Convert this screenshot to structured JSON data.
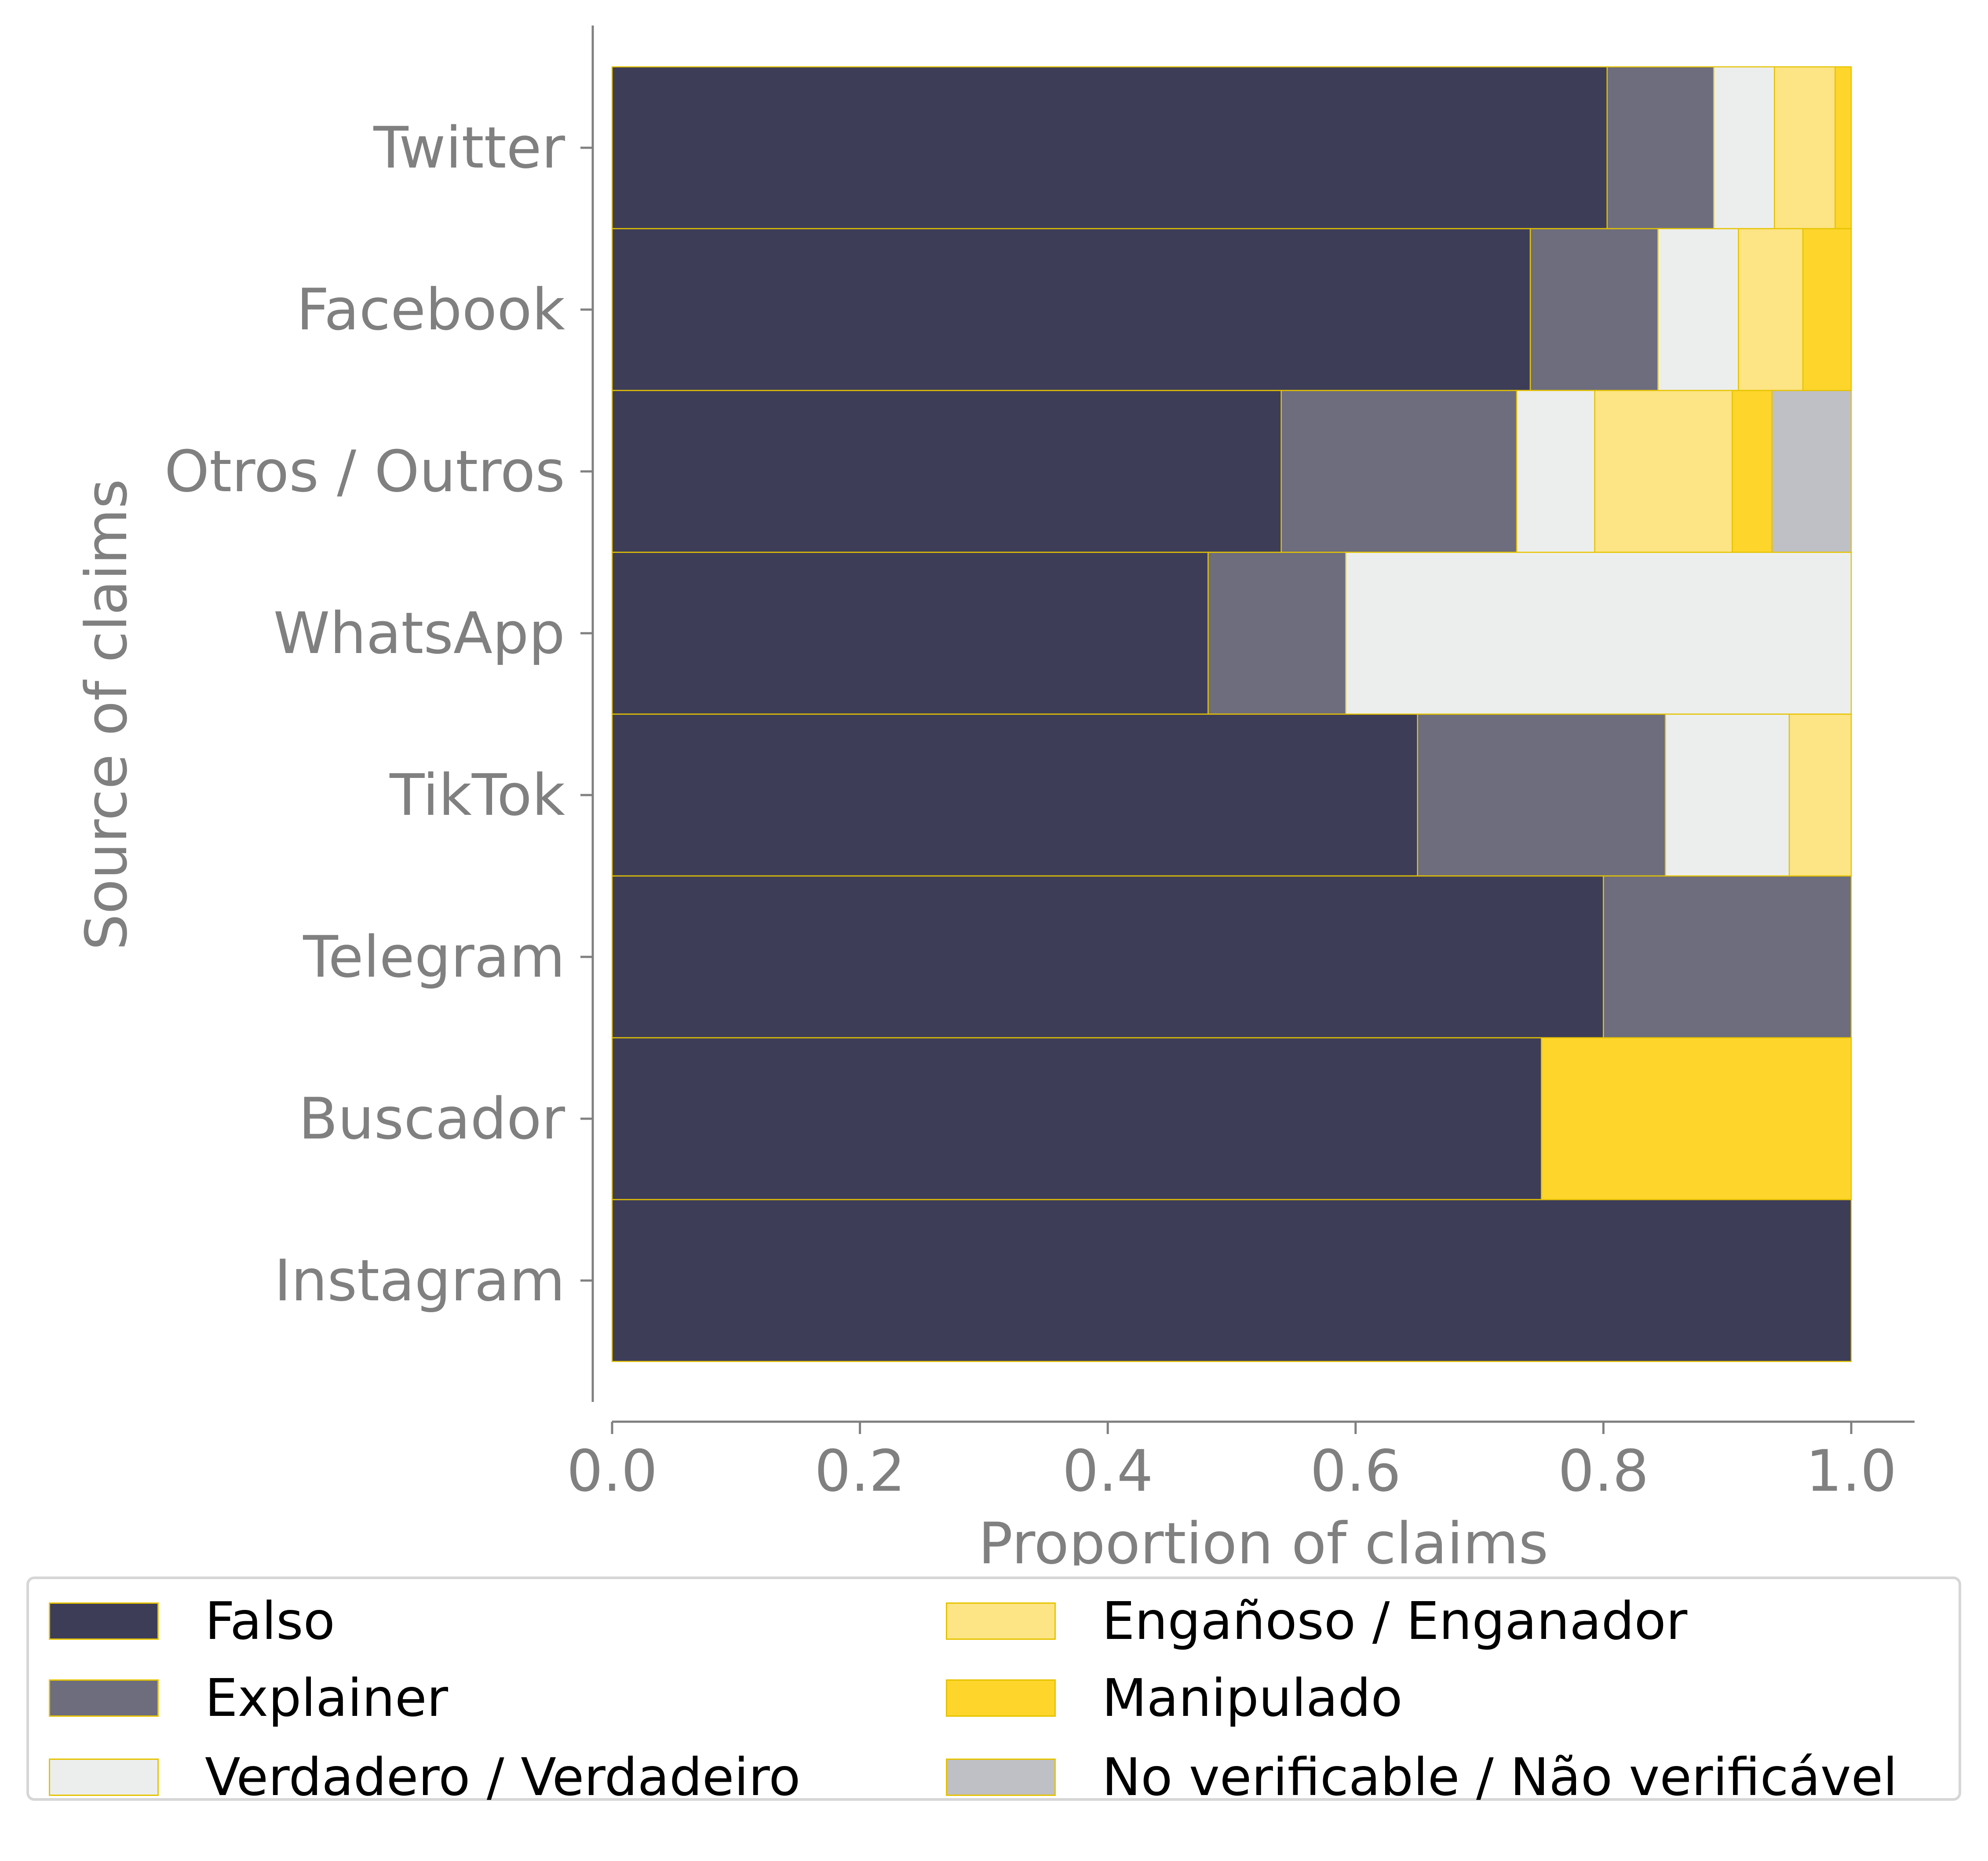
{
  "chart_data": {
    "type": "bar",
    "orientation": "horizontal",
    "stacked": true,
    "categories": [
      "Twitter",
      "Facebook",
      "Otros / Outros",
      "WhatsApp",
      "TikTok",
      "Telegram",
      "Buscador",
      "Instagram"
    ],
    "series": [
      {
        "name": "Falso",
        "color": "#3d3d58",
        "values": [
          0.803,
          0.741,
          0.54,
          0.481,
          0.65,
          0.8,
          0.75,
          1.0
        ]
      },
      {
        "name": "Explainer",
        "color": "#6d6d7e",
        "values": [
          0.086,
          0.103,
          0.19,
          0.111,
          0.2,
          0.2,
          0.0,
          0.0
        ]
      },
      {
        "name": "Verdadero / Verdadeiro",
        "color": "#eceeee",
        "values": [
          0.049,
          0.065,
          0.063,
          0.408,
          0.1,
          0.0,
          0.0,
          0.0
        ]
      },
      {
        "name": "Engañoso / Enganador",
        "color": "#fde485",
        "values": [
          0.049,
          0.052,
          0.111,
          0.0,
          0.05,
          0.0,
          0.0,
          0.0
        ]
      },
      {
        "name": "Manipulado",
        "color": "#fdd52b",
        "values": [
          0.013,
          0.039,
          0.032,
          0.0,
          0.0,
          0.0,
          0.25,
          0.0
        ]
      },
      {
        "name": "No verificable / Não verificável",
        "color": "#bfbfc6",
        "values": [
          0.0,
          0.0,
          0.064,
          0.0,
          0.0,
          0.0,
          0.0,
          0.0
        ]
      }
    ],
    "xlabel": "Proportion of claims",
    "ylabel": "Source of claims",
    "xlim": [
      0,
      1.05
    ],
    "xticks": [
      "0.0",
      "0.2",
      "0.4",
      "0.6",
      "0.8",
      "1.0"
    ],
    "grid": false,
    "legend_position": "bottom"
  }
}
